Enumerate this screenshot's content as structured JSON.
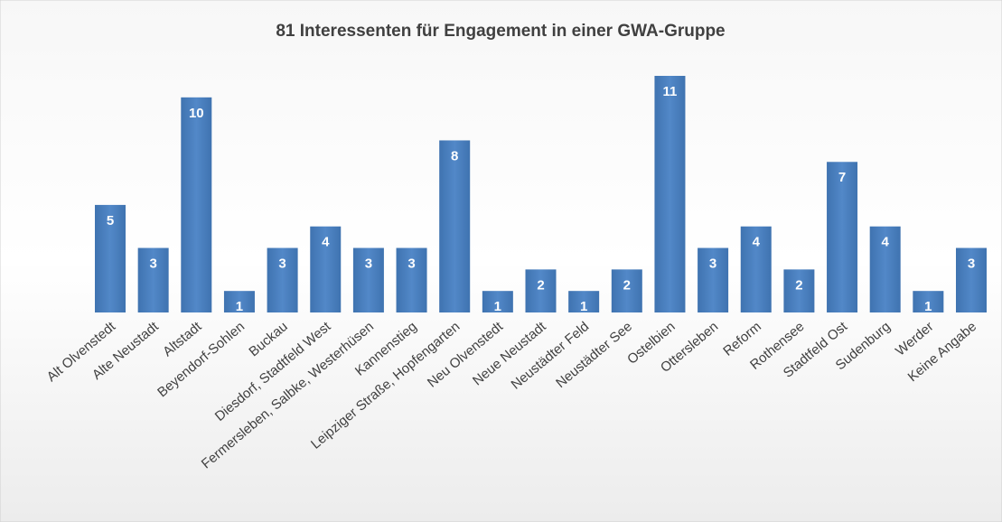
{
  "chart_data": {
    "type": "bar",
    "title": "81 Interessenten für Engagement in einer GWA-Gruppe",
    "categories": [
      "Alt Olvenstedt",
      "Alte Neustadt",
      "Altstadt",
      "Beyendorf-Sohlen",
      "Buckau",
      "Diesdorf, Stadtfeld West",
      "Fermersleben, Salbke, Westerhüsen",
      "Kannenstieg",
      "Leipziger Straße, Hopfengarten",
      "Neu Olvenstedt",
      "Neue Neustadt",
      "Neustädter Feld",
      "Neustädter See",
      "Ostelbien",
      "Ottersleben",
      "Reform",
      "Rothensee",
      "Stadtfeld Ost",
      "Sudenburg",
      "Werder",
      "Keine Angabe"
    ],
    "values": [
      5,
      3,
      10,
      1,
      3,
      4,
      3,
      3,
      8,
      1,
      2,
      1,
      2,
      11,
      3,
      4,
      2,
      7,
      4,
      1,
      3
    ],
    "color": "#4a7ebb"
  }
}
